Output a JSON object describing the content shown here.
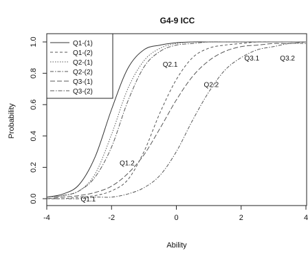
{
  "chart_data": {
    "type": "line",
    "title": "G4-9 ICC",
    "xlabel": "Ability",
    "ylabel": "Probability",
    "xlim": [
      -4,
      4
    ],
    "ylim": [
      0,
      1
    ],
    "x_ticks": [
      "-4",
      "-2",
      "0",
      "2",
      "4"
    ],
    "y_ticks": [
      "0.0",
      "0.2",
      "0.4",
      "0.6",
      "0.8",
      "1.0"
    ],
    "grid": false,
    "legend_position": "top-left",
    "x": [
      -4.0,
      -3.5,
      -3.0,
      -2.5,
      -2.0,
      -1.5,
      -1.0,
      -0.5,
      0.0,
      0.5,
      1.0,
      1.5,
      2.0,
      2.5,
      3.0,
      3.5,
      4.0
    ],
    "series": [
      {
        "name": "Q1-(1)",
        "values": [
          0.01,
          0.03,
          0.09,
          0.27,
          0.57,
          0.83,
          0.95,
          0.98,
          0.995,
          1.0,
          1.0,
          1.0,
          1.0,
          1.0,
          1.0,
          1.0,
          1.0
        ]
      },
      {
        "name": "Q1-(2)",
        "values": [
          0.0,
          0.0,
          0.01,
          0.02,
          0.05,
          0.12,
          0.3,
          0.55,
          0.76,
          0.9,
          0.96,
          0.98,
          0.99,
          1.0,
          1.0,
          1.0,
          1.0
        ]
      },
      {
        "name": "Q2-(1)",
        "values": [
          0.01,
          0.02,
          0.05,
          0.16,
          0.41,
          0.7,
          0.88,
          0.96,
          0.99,
          1.0,
          1.0,
          1.0,
          1.0,
          1.0,
          1.0,
          1.0,
          1.0
        ]
      },
      {
        "name": "Q2-(2)",
        "values": [
          0.0,
          0.0,
          0.0,
          0.01,
          0.01,
          0.03,
          0.07,
          0.15,
          0.3,
          0.5,
          0.68,
          0.82,
          0.9,
          0.95,
          0.97,
          0.99,
          0.99
        ]
      },
      {
        "name": "Q3-(1)",
        "values": [
          0.0,
          0.01,
          0.02,
          0.04,
          0.08,
          0.16,
          0.28,
          0.45,
          0.63,
          0.78,
          0.88,
          0.94,
          0.97,
          0.98,
          0.99,
          0.99,
          1.0
        ]
      },
      {
        "name": "Q3-(2)",
        "values": [
          0.01,
          0.02,
          0.05,
          0.14,
          0.33,
          0.62,
          0.84,
          0.94,
          0.98,
          0.99,
          1.0,
          1.0,
          1.0,
          1.0,
          1.0,
          1.0,
          1.0
        ]
      }
    ],
    "annotations": [
      {
        "text": "Q1.1",
        "x": -2.95,
        "y": 0.0
      },
      {
        "text": "Q1.2",
        "x": -1.75,
        "y": 0.23
      },
      {
        "text": "Q2.1",
        "x": -0.42,
        "y": 0.86
      },
      {
        "text": "Q2.2",
        "x": 0.85,
        "y": 0.73
      },
      {
        "text": "Q3.1",
        "x": 2.1,
        "y": 0.9
      },
      {
        "text": "Q3.2",
        "x": 3.2,
        "y": 0.9
      }
    ]
  }
}
